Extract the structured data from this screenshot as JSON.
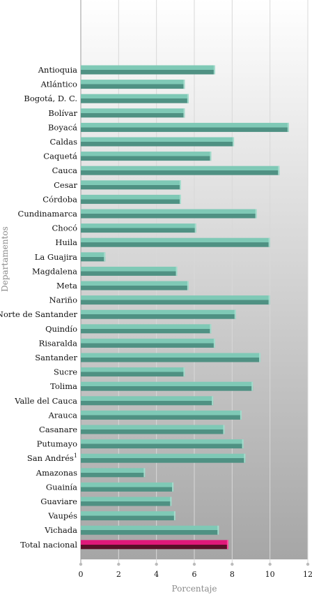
{
  "chart_data": {
    "type": "bar",
    "orientation": "horizontal",
    "xlabel": "Porcentaje",
    "ylabel": "Departamentos",
    "xlim": [
      0,
      12
    ],
    "xticks": [
      "0",
      "2",
      "4",
      "6",
      "8",
      "10",
      "12"
    ],
    "grid": true,
    "legend": "none",
    "categories": [
      "Antioquia",
      "Atlántico",
      "Bogotá, D. C.",
      "Bolívar",
      "Boyacá",
      "Caldas",
      "Caquetá",
      "Cauca",
      "Cesar",
      "Córdoba",
      "Cundinamarca",
      "Chocó",
      "Huila",
      "La Guajira",
      "Magdalena",
      "Meta",
      "Nariño",
      "Norte de Santander",
      "Quindío",
      "Risaralda",
      "Santander",
      "Sucre",
      "Tolima",
      "Valle del Cauca",
      "Arauca",
      "Casanare",
      "Putumayo",
      "San Andrés",
      "Amazonas",
      "Guainía",
      "Guaviare",
      "Vaupés",
      "Vichada",
      "Total nacional"
    ],
    "category_superscripts": {
      "San Andrés": "1"
    },
    "values": [
      7.1,
      5.5,
      5.7,
      5.5,
      11.0,
      8.1,
      6.9,
      10.5,
      5.3,
      5.3,
      9.3,
      6.1,
      10.0,
      1.3,
      5.1,
      5.7,
      10.0,
      8.2,
      6.9,
      7.1,
      9.5,
      5.5,
      9.1,
      7.0,
      8.5,
      7.6,
      8.6,
      8.7,
      3.4,
      4.9,
      4.8,
      5.0,
      7.3,
      7.8
    ],
    "highlight": "Total nacional",
    "colors": {
      "bar_top": "#7fc9b6",
      "bar_bottom": "#4f9183",
      "bar_end": "#a6dccd",
      "highlight_top": "#e0187a",
      "highlight_bottom": "#5a1028",
      "highlight_end": "#ff4fa0"
    }
  }
}
